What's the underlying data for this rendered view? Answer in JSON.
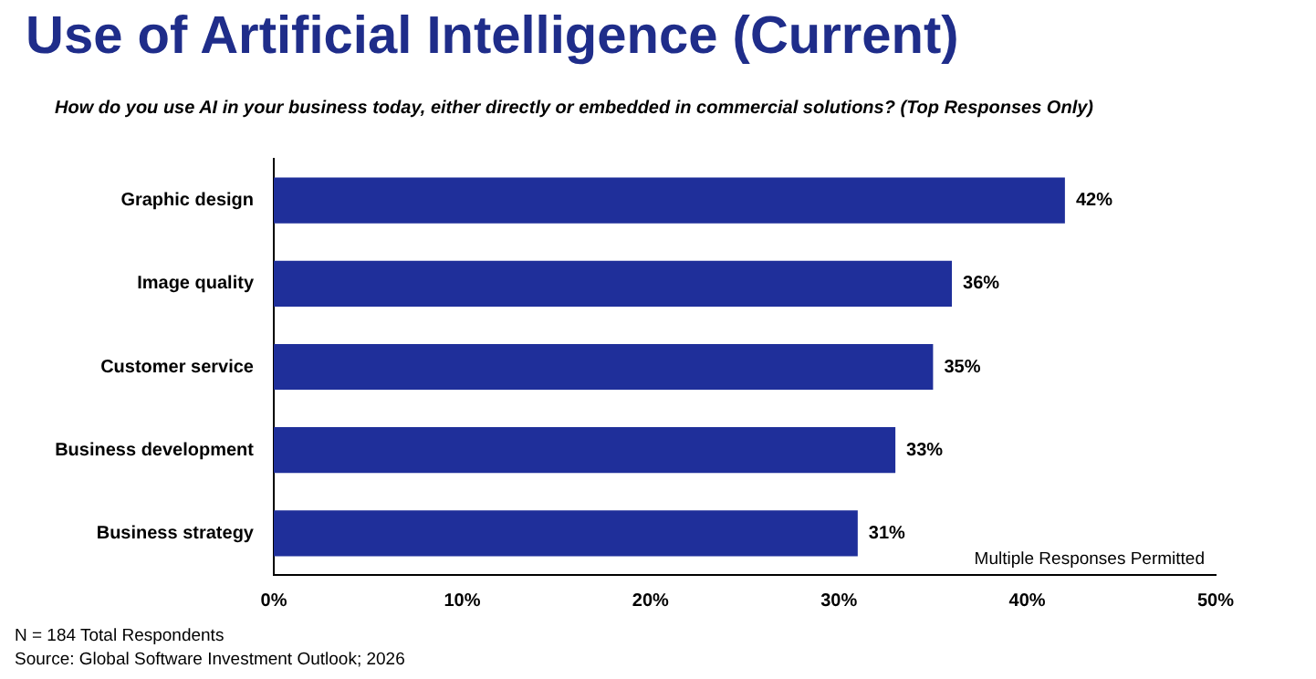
{
  "chart_data": {
    "type": "bar",
    "orientation": "horizontal",
    "title": "Use of Artificial Intelligence (Current)",
    "subtitle": "How do you use AI in your business today, either directly or embedded in commercial solutions? (Top Responses Only)",
    "categories": [
      "Graphic design",
      "Image quality",
      "Customer service",
      "Business development",
      "Business strategy"
    ],
    "values": [
      42,
      36,
      35,
      33,
      31
    ],
    "value_labels": [
      "42%",
      "36%",
      "35%",
      "33%",
      "31%"
    ],
    "color": "#1f2f9a",
    "xlim": [
      0,
      50
    ],
    "xticks": [
      {
        "value": 0,
        "label": "0%"
      },
      {
        "value": 10,
        "label": "10%"
      },
      {
        "value": 20,
        "label": "20%"
      },
      {
        "value": 30,
        "label": "30%"
      },
      {
        "value": 40,
        "label": "40%"
      },
      {
        "value": 50,
        "label": "50%"
      }
    ],
    "grid": false,
    "legend": false,
    "annotations": [
      "Multiple Responses Permitted",
      "N = 184 Total Respondents",
      "Source: Global Software Investment Outlook; 2026"
    ]
  }
}
